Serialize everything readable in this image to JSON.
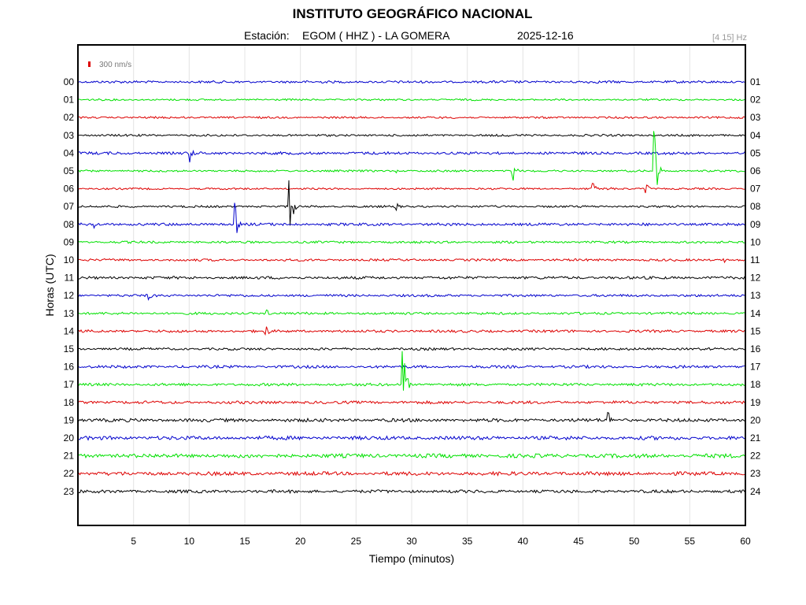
{
  "chart_data": {
    "type": "line",
    "title": "INSTITUTO GEOGRÁFICO NACIONAL",
    "station_label": "Estación:",
    "station": "EGOM ( HHZ ) - LA GOMERA",
    "date": "2025-12-16",
    "filter_band": "[4 15] Hz",
    "scale_label": "300 nm/s",
    "xlabel": "Tiempo (minutos)",
    "ylabel": "Horas (UTC)",
    "xlim": [
      0,
      60
    ],
    "xticks": [
      5,
      10,
      15,
      20,
      25,
      30,
      35,
      40,
      45,
      50,
      55,
      60
    ],
    "grid": true,
    "left_labels": [
      "00",
      "01",
      "02",
      "03",
      "04",
      "05",
      "06",
      "07",
      "08",
      "09",
      "10",
      "11",
      "12",
      "13",
      "14",
      "15",
      "16",
      "17",
      "18",
      "19",
      "20",
      "21",
      "22",
      "23"
    ],
    "right_labels": [
      "01",
      "02",
      "03",
      "04",
      "05",
      "06",
      "07",
      "08",
      "09",
      "10",
      "11",
      "12",
      "13",
      "14",
      "15",
      "16",
      "17",
      "18",
      "19",
      "20",
      "21",
      "22",
      "23",
      "24"
    ],
    "trace_colors": [
      "#0000cc",
      "#00e000",
      "#dd0000",
      "#000000"
    ],
    "scale_color": "#dd0000",
    "events": [
      {
        "hour": 0,
        "minute": 14.5,
        "amplitude": 0.15
      },
      {
        "hour": 4,
        "minute": 10.1,
        "amplitude": 0.6
      },
      {
        "hour": 5,
        "minute": 28.5,
        "amplitude": 0.2
      },
      {
        "hour": 5,
        "minute": 39.0,
        "amplitude": 1.3
      },
      {
        "hour": 5,
        "minute": 51.8,
        "amplitude": 3.3
      },
      {
        "hour": 6,
        "minute": 46.3,
        "amplitude": 0.5
      },
      {
        "hour": 6,
        "minute": 47.6,
        "amplitude": 0.4
      },
      {
        "hour": 6,
        "minute": 51.0,
        "amplitude": 0.8
      },
      {
        "hour": 7,
        "minute": 19.0,
        "amplitude": 2.5
      },
      {
        "hour": 7,
        "minute": 28.5,
        "amplitude": 0.5
      },
      {
        "hour": 8,
        "minute": 1.5,
        "amplitude": 0.3
      },
      {
        "hour": 8,
        "minute": 14.1,
        "amplitude": 1.3
      },
      {
        "hour": 10,
        "minute": 58.0,
        "amplitude": 0.25
      },
      {
        "hour": 12,
        "minute": 6.4,
        "amplitude": 0.4
      },
      {
        "hour": 13,
        "minute": 17.0,
        "amplitude": 0.3
      },
      {
        "hour": 14,
        "minute": 16.9,
        "amplitude": 0.5
      },
      {
        "hour": 17,
        "minute": 29.2,
        "amplitude": 3.1
      },
      {
        "hour": 19,
        "minute": 47.6,
        "amplitude": 0.8
      }
    ]
  }
}
